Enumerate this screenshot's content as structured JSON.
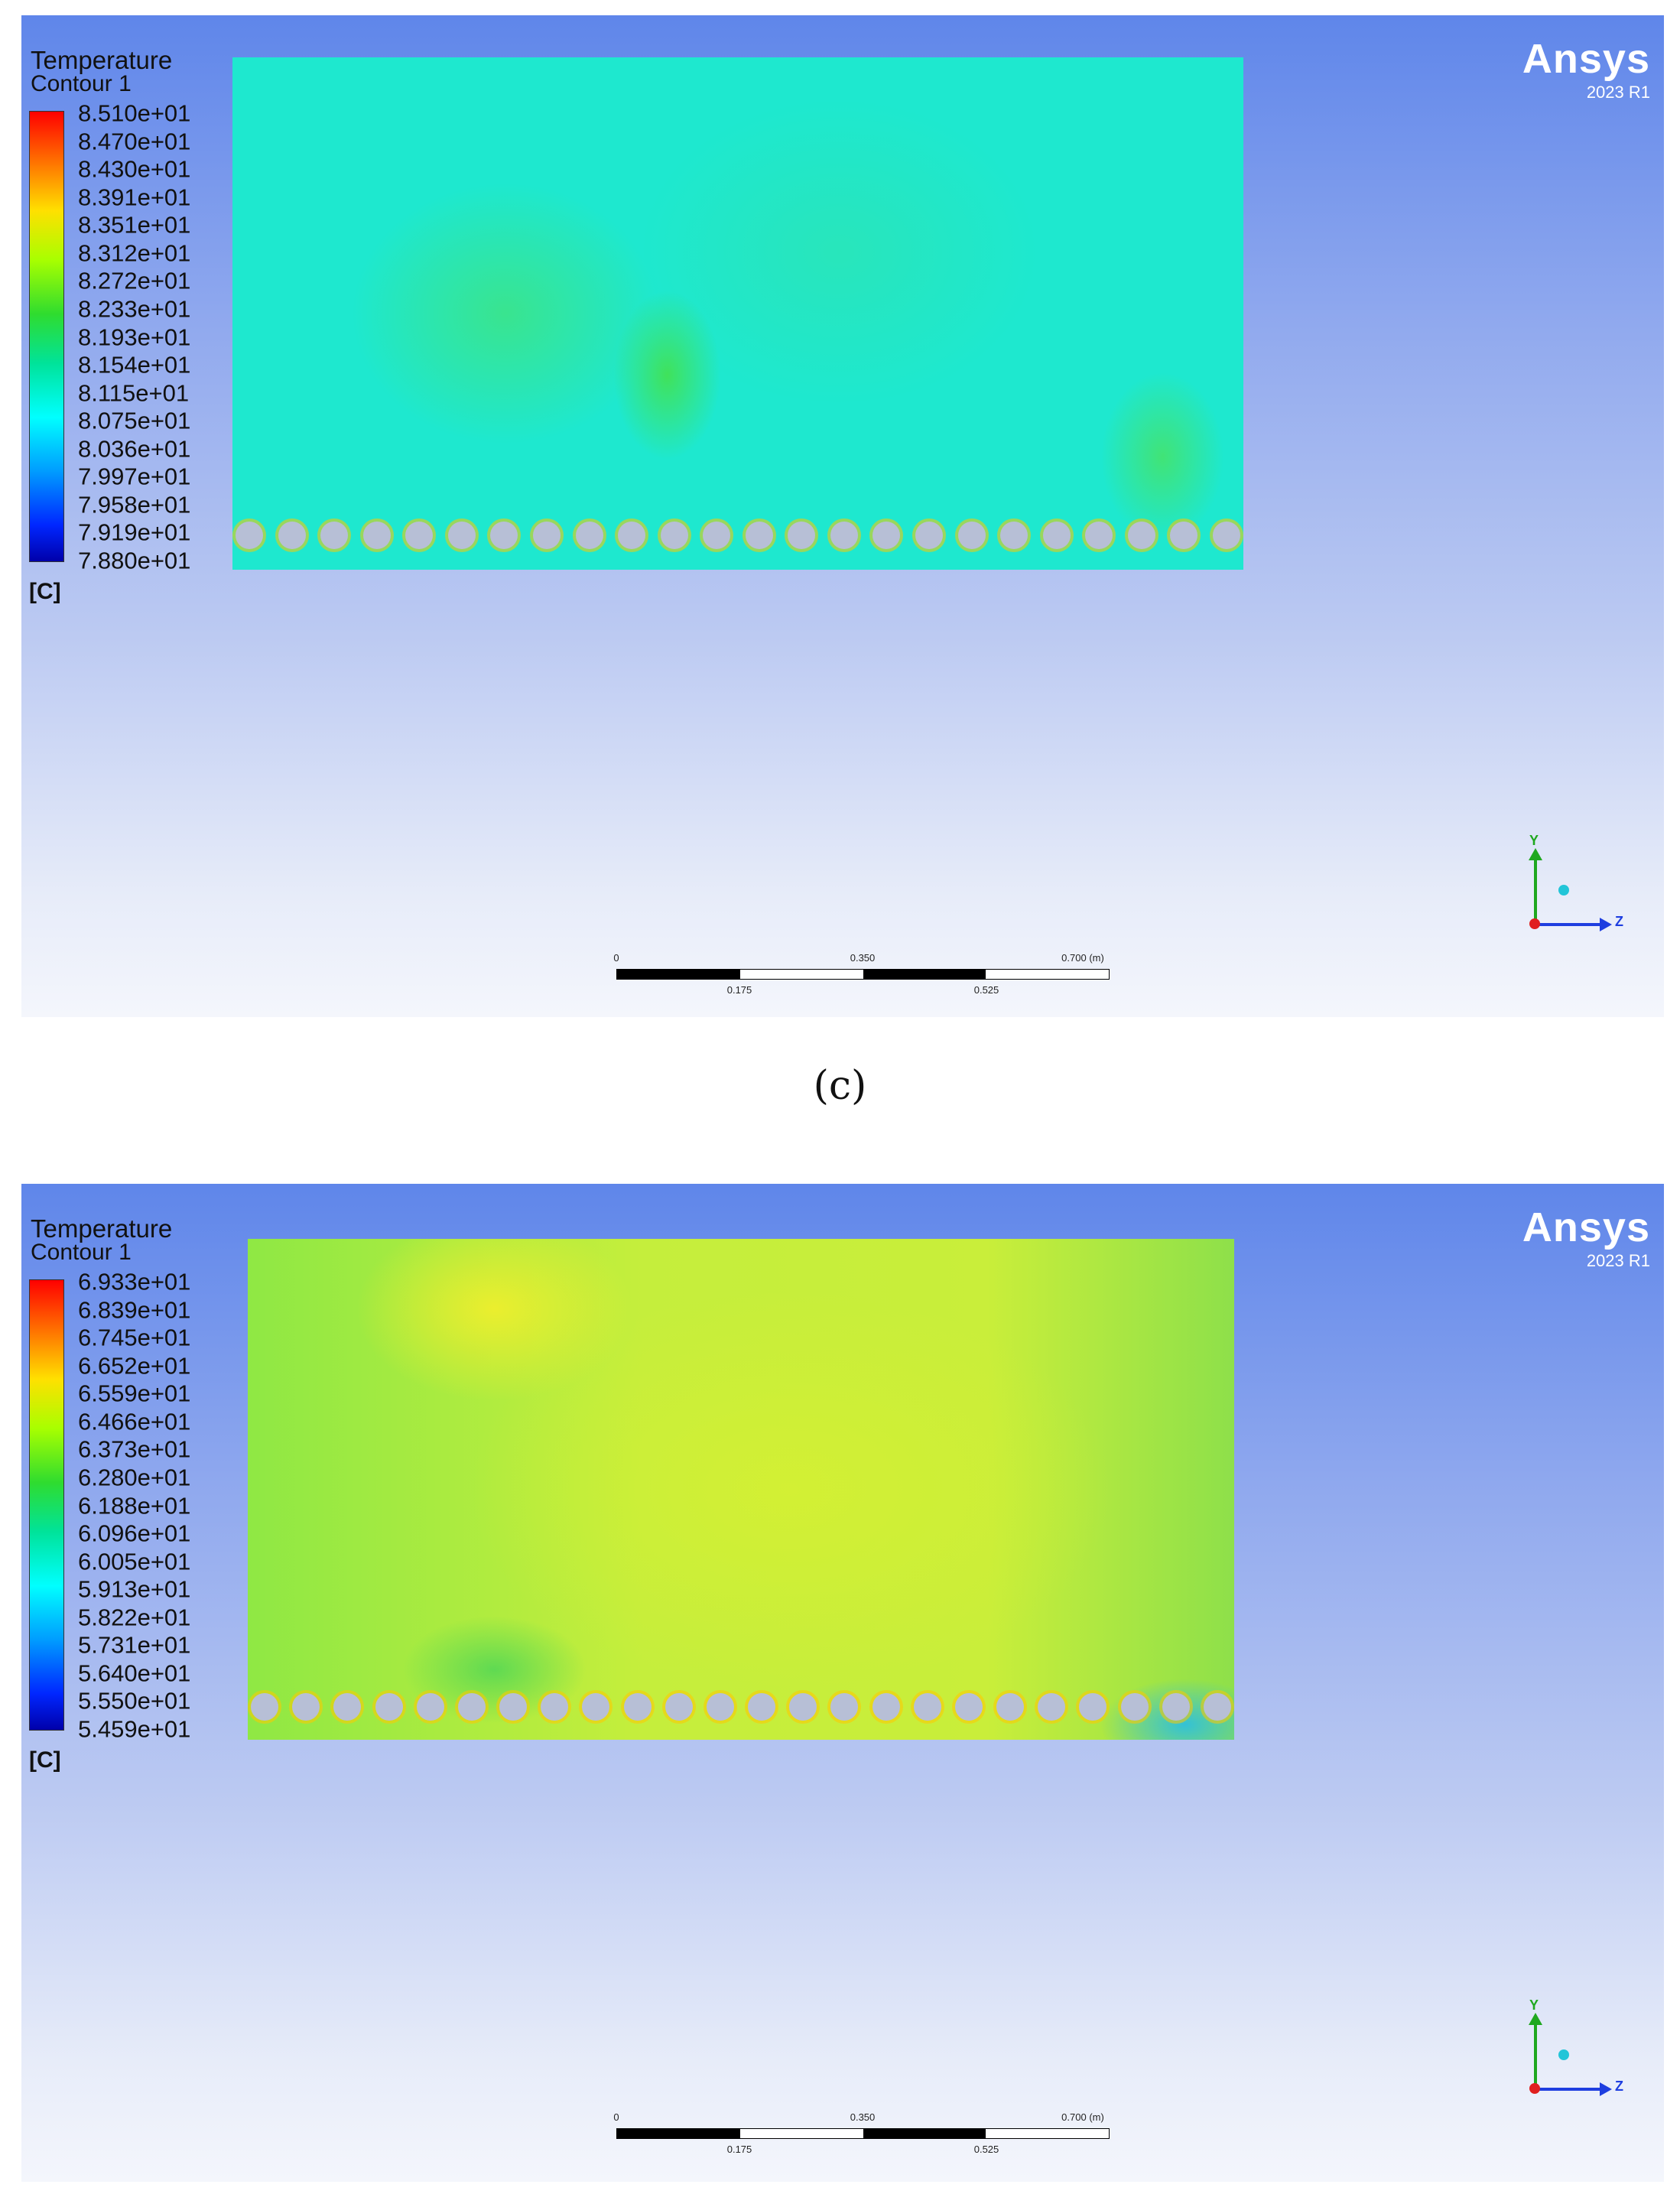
{
  "panels": [
    {
      "title_line1": "Temperature",
      "title_line2": "Contour 1",
      "legend_ticks": [
        "8.510e+01",
        "8.470e+01",
        "8.430e+01",
        "8.391e+01",
        "8.351e+01",
        "8.312e+01",
        "8.272e+01",
        "8.233e+01",
        "8.193e+01",
        "8.154e+01",
        "8.115e+01",
        "8.075e+01",
        "8.036e+01",
        "7.997e+01",
        "7.958e+01",
        "7.919e+01",
        "7.880e+01"
      ],
      "unit": "[C]",
      "logo": "Ansys",
      "version": "2023 R1",
      "axis_y": "Y",
      "axis_z": "Z",
      "scale_top": [
        "0",
        "0.350",
        "0.700 (m)"
      ],
      "scale_bottom": [
        "0.175",
        "0.525"
      ]
    },
    {
      "title_line1": "Temperature",
      "title_line2": "Contour 1",
      "legend_ticks": [
        "6.933e+01",
        "6.839e+01",
        "6.745e+01",
        "6.652e+01",
        "6.559e+01",
        "6.466e+01",
        "6.373e+01",
        "6.280e+01",
        "6.188e+01",
        "6.096e+01",
        "6.005e+01",
        "5.913e+01",
        "5.822e+01",
        "5.731e+01",
        "5.640e+01",
        "5.550e+01",
        "5.459e+01"
      ],
      "unit": "[C]",
      "logo": "Ansys",
      "version": "2023 R1",
      "axis_y": "Y",
      "axis_z": "Z",
      "scale_top": [
        "0",
        "0.350",
        "0.700 (m)"
      ],
      "scale_bottom": [
        "0.175",
        "0.525"
      ]
    }
  ],
  "caption": "(c)"
}
